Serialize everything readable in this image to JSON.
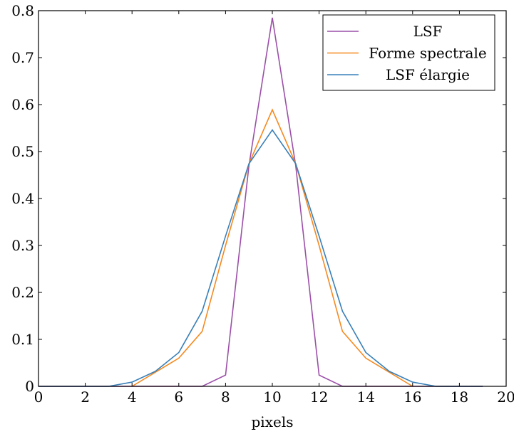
{
  "chart_data": {
    "type": "line",
    "xlabel": "pixels",
    "ylabel": "",
    "xlim": [
      0,
      20
    ],
    "ylim": [
      0,
      0.8
    ],
    "xticks": [
      "0",
      "2",
      "4",
      "6",
      "8",
      "10",
      "12",
      "14",
      "16",
      "18",
      "20"
    ],
    "yticks": [
      "0",
      "0.1",
      "0.2",
      "0.3",
      "0.4",
      "0.5",
      "0.6",
      "0.7",
      "0.8"
    ],
    "grid": false,
    "legend_position": "top-right",
    "series": [
      {
        "name": "LSF",
        "color": "#9b4fa8",
        "x": [
          0,
          1,
          2,
          3,
          4,
          5,
          6,
          7,
          8,
          9,
          10,
          11,
          12,
          13,
          14,
          15,
          16,
          17,
          18,
          19
        ],
        "y": [
          0,
          0,
          0,
          0,
          0,
          0,
          0,
          0,
          0.024,
          0.47,
          0.785,
          0.47,
          0.024,
          0,
          0,
          0,
          0,
          0,
          0,
          0
        ]
      },
      {
        "name": "Forme spectrale",
        "color": "#f5891f",
        "x": [
          4,
          5,
          6,
          7,
          8,
          9,
          10,
          11,
          12,
          13,
          14,
          15,
          16
        ],
        "y": [
          0,
          0.03,
          0.06,
          0.117,
          0.3,
          0.474,
          0.589,
          0.474,
          0.3,
          0.117,
          0.06,
          0.03,
          0
        ]
      },
      {
        "name": "LSF élargie",
        "color": "#3a80b8",
        "x": [
          0,
          1,
          2,
          3,
          4,
          5,
          6,
          7,
          8,
          9,
          10,
          11,
          12,
          13,
          14,
          15,
          16,
          17,
          18,
          19
        ],
        "y": [
          0,
          0,
          0,
          0,
          0.009,
          0.032,
          0.072,
          0.16,
          0.32,
          0.474,
          0.546,
          0.474,
          0.32,
          0.16,
          0.072,
          0.032,
          0.009,
          0,
          0,
          0
        ]
      }
    ]
  }
}
